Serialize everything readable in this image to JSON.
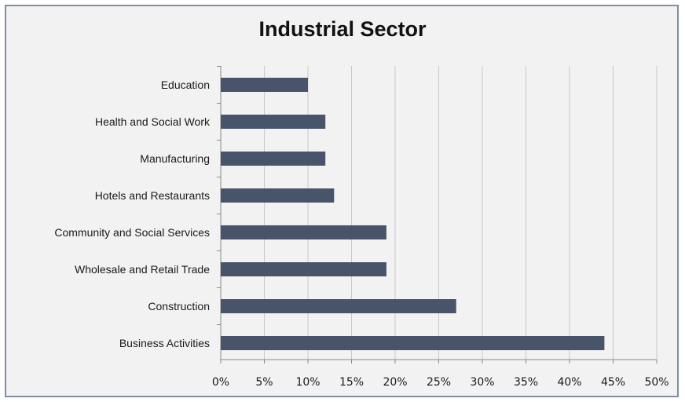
{
  "chart_data": {
    "type": "bar",
    "orientation": "horizontal",
    "title": "Industrial Sector",
    "categories": [
      "Education",
      "Health and Social Work",
      "Manufacturing",
      "Hotels and Restaurants",
      "Community and Social Services",
      "Wholesale and Retail Trade",
      "Construction",
      "Business Activities"
    ],
    "values": [
      10,
      12,
      12,
      13,
      19,
      19,
      27,
      44
    ],
    "unit": "%",
    "xlim": [
      0,
      50
    ],
    "xticks": [
      "0%",
      "5%",
      "10%",
      "15%",
      "20%",
      "25%",
      "30%",
      "35%",
      "40%",
      "45%",
      "50%"
    ],
    "grid": "vertical",
    "legend": "none",
    "bar_color": "#48546a",
    "grid_color": "#c8c8c8"
  }
}
